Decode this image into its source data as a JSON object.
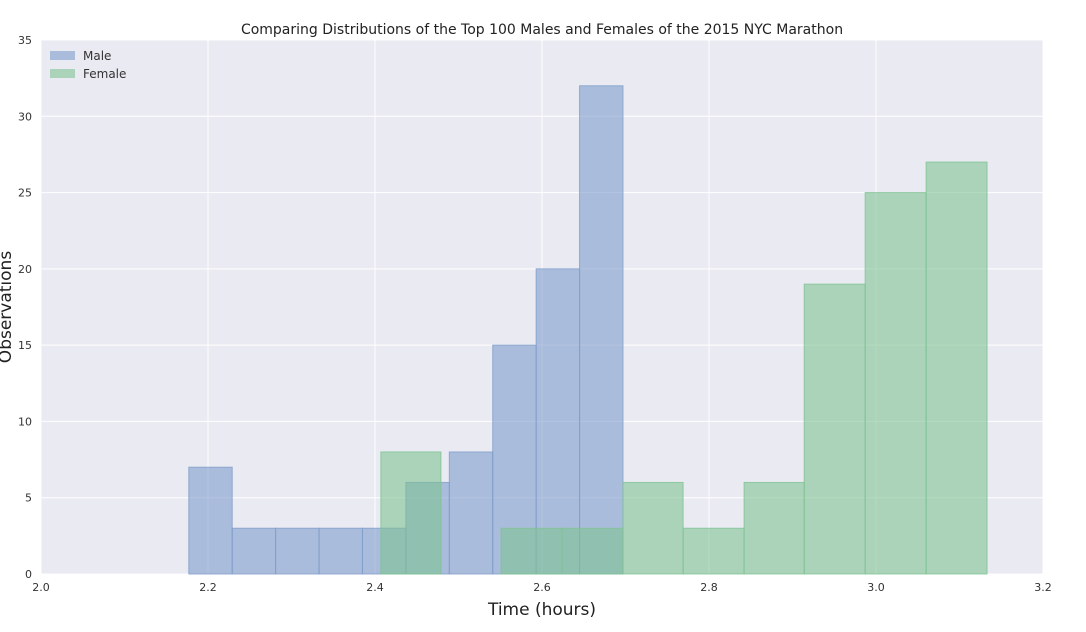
{
  "chart_data": {
    "type": "bar",
    "title": "Comparing Distributions of the Top 100 Males and Females of the 2015 NYC Marathon",
    "xlabel": "Time (hours)",
    "ylabel": "Observations",
    "xlim": [
      2.0,
      3.2
    ],
    "ylim": [
      0,
      35
    ],
    "xticks": [
      "2.0",
      "2.2",
      "2.4",
      "2.6",
      "2.8",
      "3.0",
      "3.2"
    ],
    "yticks": [
      "0",
      "5",
      "10",
      "15",
      "20",
      "25",
      "30",
      "35"
    ],
    "grid": true,
    "legend_position": "top-left",
    "series": [
      {
        "name": "Male",
        "color": "#7f9dcb",
        "bin_edges": [
          2.177,
          2.229,
          2.281,
          2.333,
          2.385,
          2.437,
          2.489,
          2.541,
          2.593,
          2.645,
          2.697
        ],
        "counts": [
          7,
          3,
          3,
          3,
          3,
          6,
          8,
          15,
          20,
          32
        ]
      },
      {
        "name": "Female",
        "color": "#7fc393",
        "bin_edges": [
          2.407,
          2.479,
          2.551,
          2.624,
          2.697,
          2.769,
          2.842,
          2.914,
          2.987,
          3.06,
          3.133
        ],
        "counts": [
          8,
          0,
          3,
          3,
          6,
          3,
          6,
          19,
          25,
          27
        ]
      }
    ]
  }
}
